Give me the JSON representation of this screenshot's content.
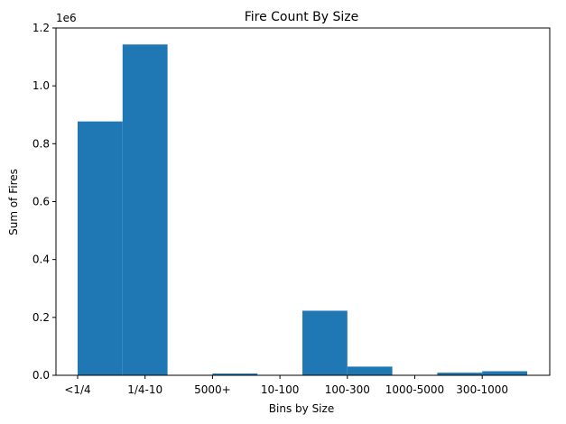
{
  "chart_data": {
    "type": "bar",
    "title": "Fire Count By Size",
    "xlabel": "Bins by Size",
    "ylabel": "Sum of Fires",
    "offset_text": "1e6",
    "ylim": [
      0,
      1200000
    ],
    "yticks": [
      0,
      200000,
      400000,
      600000,
      800000,
      1000000,
      1200000
    ],
    "ytick_labels": [
      "0.0",
      "0.2",
      "0.4",
      "0.6",
      "0.8",
      "1.0",
      "1.2"
    ],
    "xlim": [
      0,
      10
    ],
    "xticks": [
      0,
      1.5,
      3,
      4.5,
      6,
      7.5,
      9
    ],
    "xtick_labels": [
      "<1/4",
      "1/4-10",
      "5000+",
      "10-100",
      "100-300",
      "1000-5000",
      "300-1000"
    ],
    "bars": [
      {
        "x0": 0,
        "x1": 1,
        "value": 877000
      },
      {
        "x0": 1,
        "x1": 2,
        "value": 1143000
      },
      {
        "x0": 2,
        "x1": 3,
        "value": 0
      },
      {
        "x0": 3,
        "x1": 4,
        "value": 6000
      },
      {
        "x0": 4,
        "x1": 5,
        "value": 0
      },
      {
        "x0": 5,
        "x1": 6,
        "value": 223000
      },
      {
        "x0": 6,
        "x1": 7,
        "value": 30000
      },
      {
        "x0": 7,
        "x1": 8,
        "value": 0
      },
      {
        "x0": 8,
        "x1": 9,
        "value": 9000
      },
      {
        "x0": 9,
        "x1": 10,
        "value": 14000
      }
    ],
    "bar_color": "#1f77b4",
    "grid": false,
    "legend": "none"
  }
}
